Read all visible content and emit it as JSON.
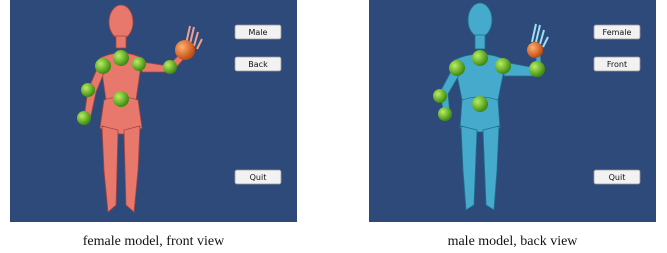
{
  "panels": [
    {
      "buttons": [
        "Male",
        "Back",
        "Quit"
      ],
      "caption": "female model, front view"
    },
    {
      "buttons": [
        "Female",
        "Front",
        "Quit"
      ],
      "caption": "male model, back view"
    }
  ]
}
